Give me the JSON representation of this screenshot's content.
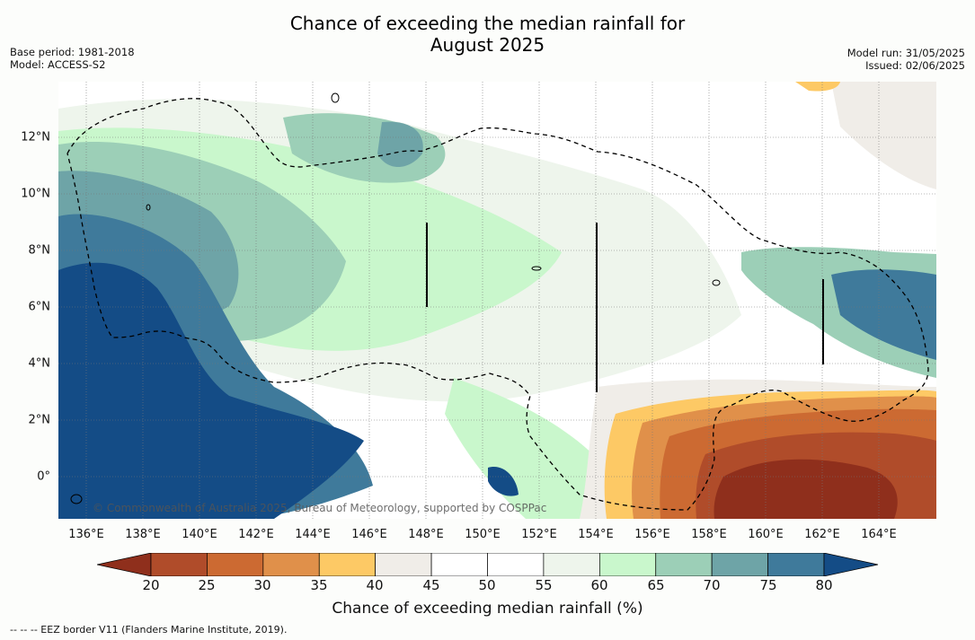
{
  "title_line1": "Chance of exceeding the median rainfall for",
  "title_line2": "August 2025",
  "meta": {
    "base_period": "Base period: 1981-2018",
    "model": "Model: ACCESS-S2",
    "model_run": "Model run: 31/05/2025",
    "issued": "Issued: 02/06/2025"
  },
  "copyright": "© Commonwealth of Australia 2025, Bureau of Meteorology, supported by COSPPac",
  "x_ticks": [
    "136°E",
    "138°E",
    "140°E",
    "142°E",
    "144°E",
    "146°E",
    "148°E",
    "150°E",
    "152°E",
    "154°E",
    "156°E",
    "158°E",
    "160°E",
    "162°E",
    "164°E"
  ],
  "y_ticks": [
    "12°N",
    "10°N",
    "8°N",
    "6°N",
    "4°N",
    "2°N",
    "0°"
  ],
  "colorbar": {
    "title": "Chance of exceeding median rainfall (%)",
    "ticks": [
      "20",
      "25",
      "30",
      "35",
      "40",
      "45",
      "50",
      "55",
      "60",
      "65",
      "70",
      "75",
      "80"
    ],
    "colors": [
      "#8f2f1c",
      "#b04c2a",
      "#cc6a32",
      "#e0904a",
      "#fdc965",
      "#f0ede8",
      "#ffffff",
      "#ffffff",
      "#eef5ec",
      "#c9f7cc",
      "#9ccfb7",
      "#6ea4a7",
      "#3f7a9b",
      "#144c86"
    ]
  },
  "footnote": "--  --  -- EEZ border V11 (Flanders Marine Institute, 2019).",
  "chart_data": {
    "type": "heatmap",
    "title": "Chance of exceeding the median rainfall for August 2025",
    "xlabel": "",
    "ylabel": "",
    "x_range": [
      "135°E",
      "166°E"
    ],
    "y_range": [
      "1.5°S",
      "14°N"
    ],
    "regions": [
      {
        "area": "western region 135–140°E, 0–7°N",
        "value_range": "75–80+%"
      },
      {
        "area": "south-east 156–166°E, 1.5°S–3°N",
        "value_range": "20–40%"
      },
      {
        "area": "far east 162–166°E, 4–7°N",
        "value_range": "70–80%"
      },
      {
        "area": "central 150–156°E, 3–9°N",
        "value_range": "45–60%"
      }
    ]
  }
}
